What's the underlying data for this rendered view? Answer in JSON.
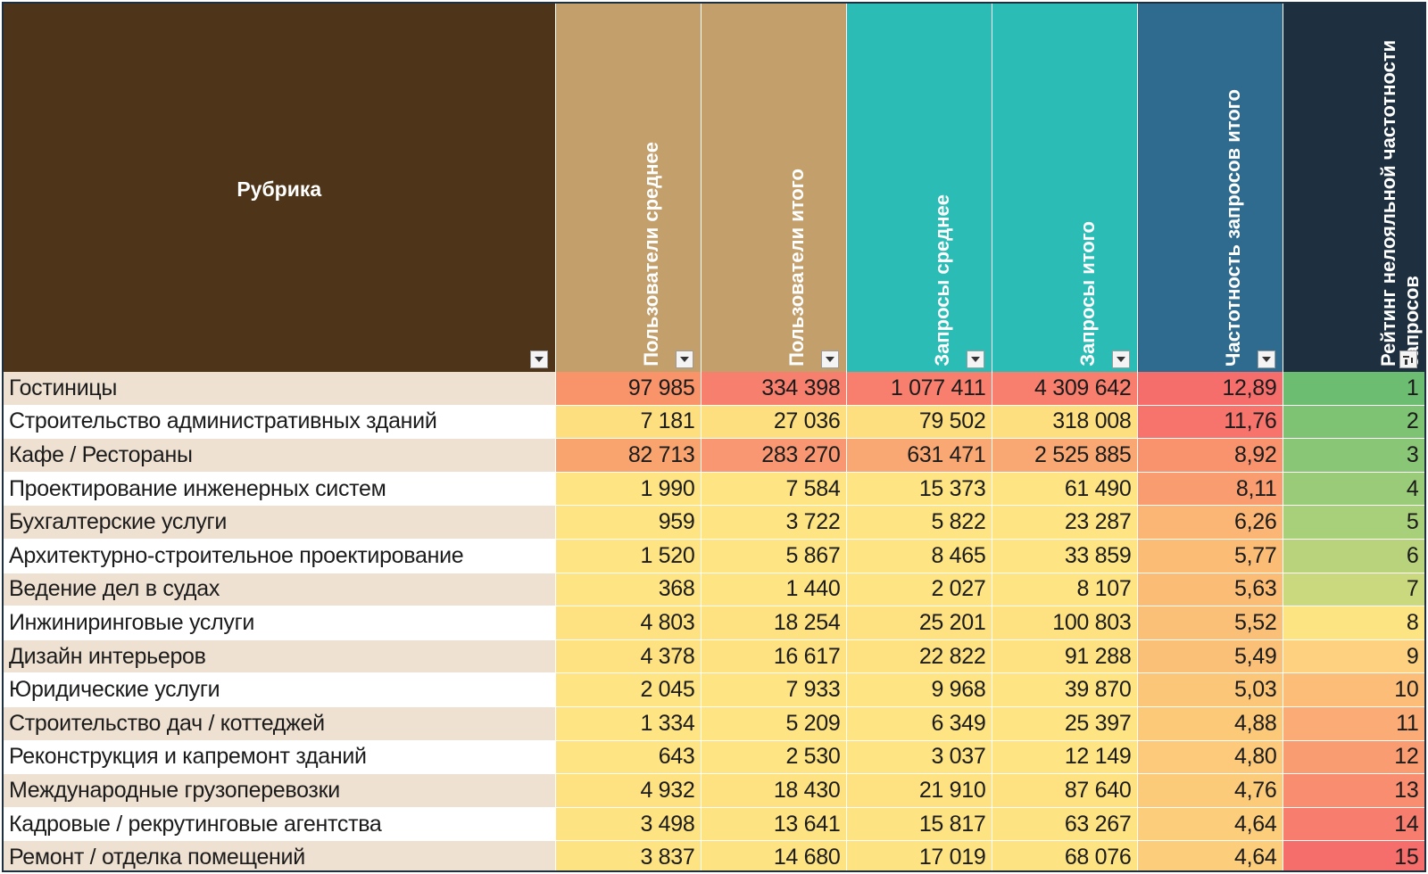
{
  "table": {
    "headers": [
      {
        "label": "Рубрика",
        "bg": "#4e3519"
      },
      {
        "label": "Пользователи среднее",
        "bg": "#c39f6c"
      },
      {
        "label": "Пользователи итого",
        "bg": "#c39f6c"
      },
      {
        "label": "Запросы среднее",
        "bg": "#2bbcb6"
      },
      {
        "label": "Запросы итого",
        "bg": "#2bbcb6"
      },
      {
        "label": "Частотность запросов итого",
        "bg": "#2e6b8e"
      },
      {
        "label": "Рейтинг нелояльной частотности запросов",
        "bg": "#1e2f3f"
      }
    ],
    "rows": [
      {
        "name": "Гостиницы",
        "cells": [
          "97 985",
          "334 398",
          "1 077 411",
          "4 309 642",
          "12,89",
          "1"
        ],
        "colors": [
          "#f8936a",
          "#f77f6e",
          "#f87e6e",
          "#f87e6e",
          "#f56e6c",
          "#6cbd72"
        ]
      },
      {
        "name": "Строительство административных зданий",
        "cells": [
          "7 181",
          "27 036",
          "79 502",
          "318 008",
          "11,76",
          "2"
        ],
        "colors": [
          "#fddf80",
          "#fddf80",
          "#fddf80",
          "#fddf80",
          "#f6746c",
          "#7dc373"
        ]
      },
      {
        "name": "Кафе / Рестораны",
        "cells": [
          "82 713",
          "283 270",
          "631 471",
          "2 525 885",
          "8,92",
          "3"
        ],
        "colors": [
          "#f9a46e",
          "#f89772",
          "#f9a874",
          "#f9a874",
          "#f8936e",
          "#89c676"
        ]
      },
      {
        "name": "Проектирование инженерных систем",
        "cells": [
          "1 990",
          "7 584",
          "15 373",
          "61 490",
          "8,11",
          "4"
        ],
        "colors": [
          "#fee482",
          "#fee482",
          "#fee482",
          "#fee482",
          "#f99c70",
          "#99cb78"
        ]
      },
      {
        "name": "Бухгалтерские услуги",
        "cells": [
          "959",
          "3 722",
          "5 822",
          "23 287",
          "6,26",
          "5"
        ],
        "colors": [
          "#fee482",
          "#fee482",
          "#fee482",
          "#fee482",
          "#fbb574",
          "#a8cf7a"
        ]
      },
      {
        "name": "Архитектурно-строительное проектирование",
        "cells": [
          "1 520",
          "5 867",
          "8 465",
          "33 859",
          "5,77",
          "6"
        ],
        "colors": [
          "#fee482",
          "#fee482",
          "#fee482",
          "#fee482",
          "#fbbc76",
          "#b9d37d"
        ]
      },
      {
        "name": "Ведение дел в судах",
        "cells": [
          "368",
          "1 440",
          "2 027",
          "8 107",
          "5,63",
          "7"
        ],
        "colors": [
          "#fee482",
          "#fee482",
          "#fee482",
          "#fee482",
          "#fbbd76",
          "#cad87e"
        ]
      },
      {
        "name": "Инжиниринговые услуги",
        "cells": [
          "4 803",
          "18 254",
          "25 201",
          "100 803",
          "5,52",
          "8"
        ],
        "colors": [
          "#fee282",
          "#fee282",
          "#fee282",
          "#fee282",
          "#fbc077",
          "#fde482"
        ]
      },
      {
        "name": "Дизайн интерьеров",
        "cells": [
          "4 378",
          "16 617",
          "22 822",
          "91 288",
          "5,49",
          "9"
        ],
        "colors": [
          "#fee282",
          "#fee282",
          "#fee282",
          "#fee282",
          "#fbc077",
          "#fdd180"
        ]
      },
      {
        "name": "Юридические услуги",
        "cells": [
          "2 045",
          "7 933",
          "9 968",
          "39 870",
          "5,03",
          "10"
        ],
        "colors": [
          "#fee482",
          "#fee482",
          "#fee482",
          "#fee482",
          "#fcc679",
          "#fcbd79"
        ]
      },
      {
        "name": "Строительство дач / коттеджей",
        "cells": [
          "1 334",
          "5 209",
          "6 349",
          "25 397",
          "4,88",
          "11"
        ],
        "colors": [
          "#fee482",
          "#fee482",
          "#fee482",
          "#fee482",
          "#fcc979",
          "#fbac76"
        ]
      },
      {
        "name": "Реконструкция и капремонт зданий",
        "cells": [
          "643",
          "2 530",
          "3 037",
          "12 149",
          "4,80",
          "12"
        ],
        "colors": [
          "#fee482",
          "#fee482",
          "#fee482",
          "#fee482",
          "#fcca7a",
          "#fa9c72"
        ]
      },
      {
        "name": "Международные грузоперевозки",
        "cells": [
          "4 932",
          "18 430",
          "21 910",
          "87 640",
          "4,76",
          "13"
        ],
        "colors": [
          "#fee282",
          "#fee282",
          "#fee282",
          "#fee282",
          "#fccb7a",
          "#f98d70"
        ]
      },
      {
        "name": "Кадровые / рекрутинговые агентства",
        "cells": [
          "3 498",
          "13 641",
          "15 817",
          "63 267",
          "4,64",
          "14"
        ],
        "colors": [
          "#fee382",
          "#fee382",
          "#fee382",
          "#fee382",
          "#fccd7b",
          "#f77e6e"
        ]
      },
      {
        "name": "Ремонт / отделка помещений",
        "cells": [
          "3 837",
          "14 680",
          "17 019",
          "68 076",
          "4,64",
          "15"
        ],
        "colors": [
          "#fee382",
          "#fee382",
          "#fee382",
          "#fee382",
          "#fccd7b",
          "#f56e6c"
        ]
      }
    ]
  }
}
